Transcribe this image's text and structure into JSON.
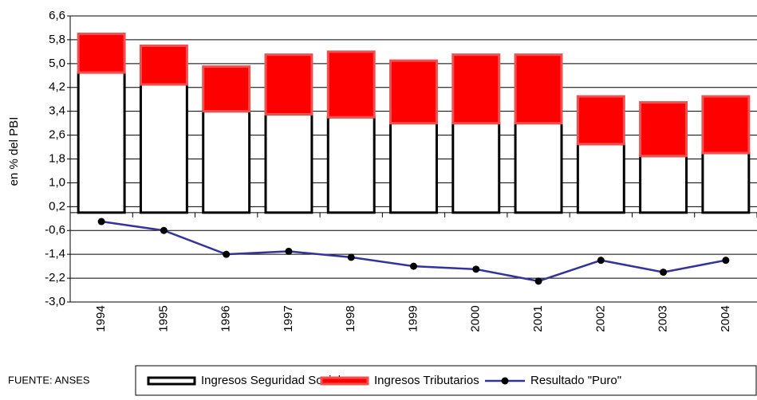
{
  "chart_data": {
    "type": "stacked-bar-line",
    "y_label": "en % del PBI",
    "source": "FUENTE: ANSES",
    "categories": [
      "1994",
      "1995",
      "1996",
      "1997",
      "1998",
      "1999",
      "2000",
      "2001",
      "2002",
      "2003",
      "2004"
    ],
    "series": [
      {
        "name": "Ingresos Seguridad Social",
        "type": "bar",
        "color": "#ffffff",
        "values": [
          4.7,
          4.3,
          3.4,
          3.3,
          3.2,
          3.0,
          3.0,
          3.0,
          2.3,
          1.9,
          2.0
        ]
      },
      {
        "name": "Ingresos Tributarios",
        "type": "bar",
        "color": "#ff0000",
        "values": [
          1.3,
          1.3,
          1.5,
          2.0,
          2.2,
          2.1,
          2.3,
          2.3,
          1.6,
          1.8,
          1.9
        ]
      },
      {
        "name": "Resultado \"Puro\"",
        "type": "line",
        "color": "#333399",
        "values": [
          -0.3,
          -0.6,
          -1.4,
          -1.3,
          -1.5,
          -1.8,
          -1.9,
          -2.3,
          -1.6,
          -2.0,
          -1.6
        ]
      }
    ],
    "ylim": [
      -3.0,
      6.6
    ],
    "yticks": [
      {
        "value": 6.6,
        "label": "6,6"
      },
      {
        "value": 5.8,
        "label": "5,8"
      },
      {
        "value": 5.0,
        "label": "5,0"
      },
      {
        "value": 4.2,
        "label": "4,2"
      },
      {
        "value": 3.4,
        "label": "3,4"
      },
      {
        "value": 2.6,
        "label": "2,6"
      },
      {
        "value": 1.8,
        "label": "1,8"
      },
      {
        "value": 1.0,
        "label": "1,0"
      },
      {
        "value": 0.2,
        "label": "0,2"
      },
      {
        "value": -0.6,
        "label": "-0,6"
      },
      {
        "value": -1.4,
        "label": "-1,4"
      },
      {
        "value": -2.2,
        "label": "-2,2"
      },
      {
        "value": -3.0,
        "label": "-3,0"
      }
    ],
    "grid": true
  }
}
